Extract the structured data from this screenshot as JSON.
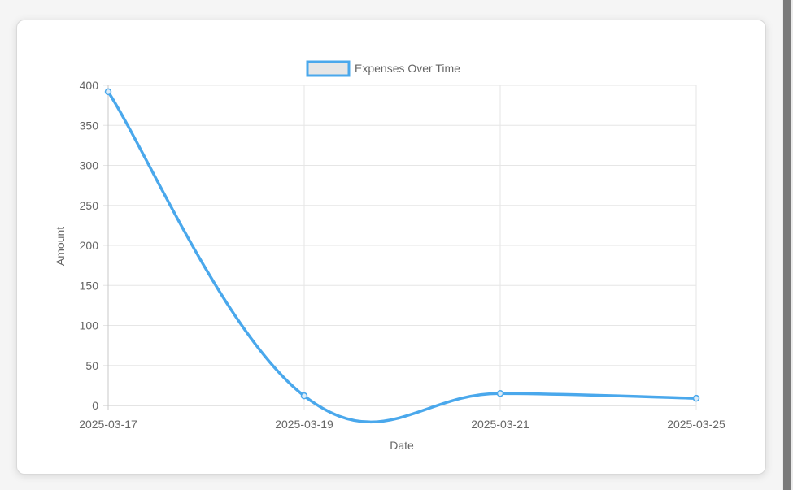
{
  "chart_data": {
    "type": "line",
    "x": [
      "2025-03-17",
      "2025-03-19",
      "2025-03-21",
      "2025-03-25"
    ],
    "series": [
      {
        "name": "Expenses Over Time",
        "values": [
          392,
          12,
          15,
          9
        ],
        "color": "#4aa8ec"
      }
    ],
    "xlabel": "Date",
    "ylabel": "Amount",
    "ylim": [
      0,
      400
    ],
    "yticks": [
      0,
      50,
      100,
      150,
      200,
      250,
      300,
      350,
      400
    ],
    "grid": true,
    "legend_position": "top"
  }
}
